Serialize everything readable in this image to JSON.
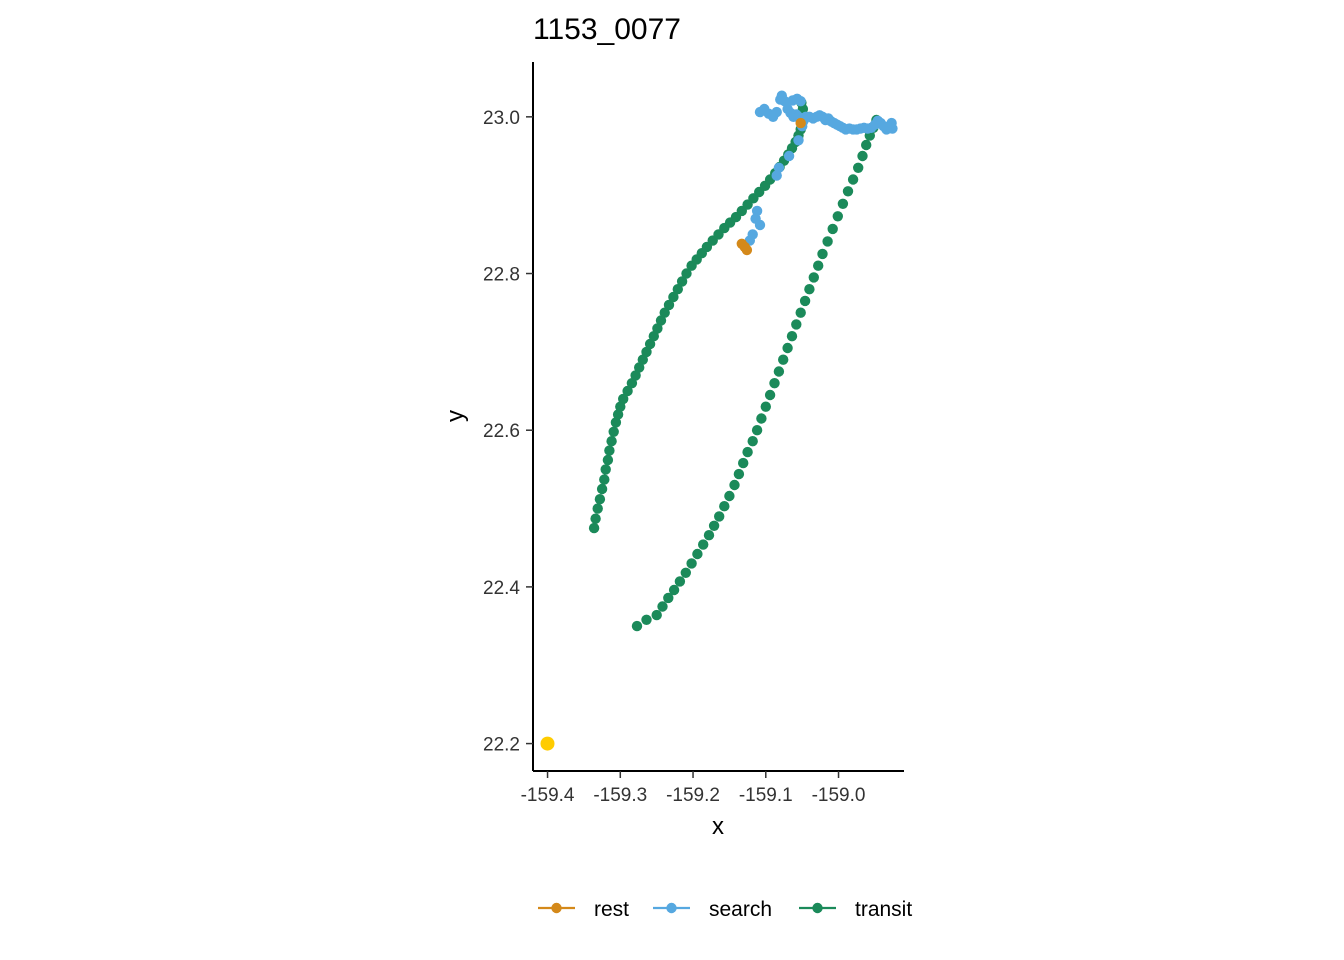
{
  "chart_data": {
    "type": "scatter",
    "title": "1153_0077",
    "xlabel": "x",
    "ylabel": "y",
    "xlim": [
      -159.42,
      -158.91
    ],
    "ylim": [
      22.165,
      23.07
    ],
    "x_ticks": [
      -159.4,
      -159.3,
      -159.2,
      -159.1,
      -159.0
    ],
    "x_tick_labels": [
      "-159.4",
      "-159.3",
      "-159.2",
      "-159.1",
      "-159.0"
    ],
    "y_ticks": [
      22.2,
      22.4,
      22.6,
      22.8,
      23.0
    ],
    "y_tick_labels": [
      "22.2",
      "22.4",
      "22.6",
      "22.8",
      "23.0"
    ],
    "grid": false,
    "legend_position": "bottom",
    "start_point": {
      "x": -159.4,
      "y": 22.2,
      "color": "#FFCC00"
    },
    "series": [
      {
        "name": "transit",
        "color": "#1B8A5A",
        "points": [
          [
            -159.336,
            22.475
          ],
          [
            -159.334,
            22.487
          ],
          [
            -159.331,
            22.5
          ],
          [
            -159.328,
            22.512
          ],
          [
            -159.325,
            22.525
          ],
          [
            -159.322,
            22.537
          ],
          [
            -159.32,
            22.55
          ],
          [
            -159.317,
            22.562
          ],
          [
            -159.315,
            22.574
          ],
          [
            -159.312,
            22.586
          ],
          [
            -159.309,
            22.598
          ],
          [
            -159.306,
            22.61
          ],
          [
            -159.303,
            22.62
          ],
          [
            -159.3,
            22.63
          ],
          [
            -159.296,
            22.64
          ],
          [
            -159.29,
            22.65
          ],
          [
            -159.284,
            22.66
          ],
          [
            -159.279,
            22.67
          ],
          [
            -159.274,
            22.68
          ],
          [
            -159.269,
            22.69
          ],
          [
            -159.264,
            22.7
          ],
          [
            -159.259,
            22.71
          ],
          [
            -159.254,
            22.72
          ],
          [
            -159.249,
            22.73
          ],
          [
            -159.244,
            22.74
          ],
          [
            -159.239,
            22.75
          ],
          [
            -159.233,
            22.76
          ],
          [
            -159.227,
            22.77
          ],
          [
            -159.221,
            22.78
          ],
          [
            -159.215,
            22.79
          ],
          [
            -159.209,
            22.8
          ],
          [
            -159.202,
            22.81
          ],
          [
            -159.195,
            22.818
          ],
          [
            -159.188,
            22.826
          ],
          [
            -159.181,
            22.834
          ],
          [
            -159.173,
            22.842
          ],
          [
            -159.165,
            22.85
          ],
          [
            -159.157,
            22.858
          ],
          [
            -159.149,
            22.865
          ],
          [
            -159.141,
            22.872
          ],
          [
            -159.133,
            22.88
          ],
          [
            -159.125,
            22.888
          ],
          [
            -159.117,
            22.896
          ],
          [
            -159.109,
            22.904
          ],
          [
            -159.101,
            22.912
          ],
          [
            -159.094,
            22.92
          ],
          [
            -159.087,
            22.928
          ],
          [
            -159.081,
            22.936
          ],
          [
            -159.075,
            22.944
          ],
          [
            -159.069,
            22.952
          ],
          [
            -159.064,
            22.96
          ],
          [
            -159.059,
            22.968
          ],
          [
            -159.055,
            22.976
          ],
          [
            -159.052,
            22.984
          ],
          [
            -159.05,
            22.992
          ],
          [
            -159.049,
            23.0
          ],
          [
            -159.049,
            23.01
          ],
          [
            -159.051,
            23.018
          ],
          [
            -158.948,
            22.996
          ],
          [
            -158.952,
            22.986
          ],
          [
            -158.957,
            22.976
          ],
          [
            -158.962,
            22.964
          ],
          [
            -158.967,
            22.95
          ],
          [
            -158.973,
            22.935
          ],
          [
            -158.98,
            22.92
          ],
          [
            -158.987,
            22.905
          ],
          [
            -158.994,
            22.889
          ],
          [
            -159.001,
            22.873
          ],
          [
            -159.008,
            22.857
          ],
          [
            -159.015,
            22.841
          ],
          [
            -159.022,
            22.825
          ],
          [
            -159.028,
            22.81
          ],
          [
            -159.034,
            22.795
          ],
          [
            -159.04,
            22.78
          ],
          [
            -159.046,
            22.765
          ],
          [
            -159.052,
            22.75
          ],
          [
            -159.058,
            22.735
          ],
          [
            -159.064,
            22.72
          ],
          [
            -159.07,
            22.705
          ],
          [
            -159.076,
            22.69
          ],
          [
            -159.082,
            22.675
          ],
          [
            -159.088,
            22.66
          ],
          [
            -159.094,
            22.645
          ],
          [
            -159.1,
            22.63
          ],
          [
            -159.106,
            22.615
          ],
          [
            -159.112,
            22.6
          ],
          [
            -159.118,
            22.586
          ],
          [
            -159.125,
            22.572
          ],
          [
            -159.131,
            22.558
          ],
          [
            -159.137,
            22.544
          ],
          [
            -159.143,
            22.53
          ],
          [
            -159.15,
            22.516
          ],
          [
            -159.157,
            22.503
          ],
          [
            -159.164,
            22.49
          ],
          [
            -159.171,
            22.478
          ],
          [
            -159.178,
            22.466
          ],
          [
            -159.186,
            22.454
          ],
          [
            -159.194,
            22.442
          ],
          [
            -159.202,
            22.43
          ],
          [
            -159.21,
            22.418
          ],
          [
            -159.218,
            22.407
          ],
          [
            -159.226,
            22.396
          ],
          [
            -159.234,
            22.386
          ],
          [
            -159.242,
            22.375
          ],
          [
            -159.25,
            22.364
          ],
          [
            -159.264,
            22.358
          ],
          [
            -159.277,
            22.35
          ]
        ]
      },
      {
        "name": "search",
        "color": "#56A8E0",
        "points": [
          [
            -159.108,
            23.006
          ],
          [
            -159.102,
            23.01
          ],
          [
            -159.096,
            23.004
          ],
          [
            -159.09,
            23.0
          ],
          [
            -159.085,
            23.006
          ],
          [
            -159.08,
            23.022
          ],
          [
            -159.078,
            23.027
          ],
          [
            -159.074,
            23.02
          ],
          [
            -159.07,
            23.01
          ],
          [
            -159.066,
            23.005
          ],
          [
            -159.062,
            23.0
          ],
          [
            -159.058,
            23.003
          ],
          [
            -159.055,
            23.0
          ],
          [
            -159.052,
            22.994
          ],
          [
            -159.05,
            22.988
          ],
          [
            -159.048,
            22.995
          ],
          [
            -159.045,
            23.0
          ],
          [
            -159.04,
            23.0
          ],
          [
            -159.035,
            22.998
          ],
          [
            -159.03,
            23.0
          ],
          [
            -159.026,
            23.002
          ],
          [
            -159.022,
            23.0
          ],
          [
            -159.018,
            22.996
          ],
          [
            -159.014,
            22.998
          ],
          [
            -159.01,
            22.994
          ],
          [
            -159.006,
            22.992
          ],
          [
            -159.002,
            22.99
          ],
          [
            -158.998,
            22.988
          ],
          [
            -158.994,
            22.986
          ],
          [
            -158.99,
            22.984
          ],
          [
            -158.985,
            22.985
          ],
          [
            -158.98,
            22.984
          ],
          [
            -158.975,
            22.984
          ],
          [
            -158.97,
            22.985
          ],
          [
            -158.965,
            22.986
          ],
          [
            -158.96,
            22.985
          ],
          [
            -158.955,
            22.986
          ],
          [
            -158.95,
            22.99
          ],
          [
            -158.946,
            22.995
          ],
          [
            -158.942,
            22.992
          ],
          [
            -158.938,
            22.988
          ],
          [
            -158.934,
            22.984
          ],
          [
            -158.93,
            22.988
          ],
          [
            -158.927,
            22.992
          ],
          [
            -158.926,
            22.985
          ],
          [
            -159.063,
            23.021
          ],
          [
            -159.057,
            23.023
          ],
          [
            -159.052,
            23.02
          ],
          [
            -159.055,
            22.97
          ],
          [
            -159.068,
            22.95
          ],
          [
            -159.082,
            22.935
          ],
          [
            -159.085,
            22.925
          ],
          [
            -159.112,
            22.88
          ],
          [
            -159.114,
            22.87
          ],
          [
            -159.108,
            22.862
          ],
          [
            -159.118,
            22.85
          ],
          [
            -159.122,
            22.842
          ]
        ]
      },
      {
        "name": "rest",
        "color": "#D4891A",
        "points": [
          [
            -159.133,
            22.838
          ],
          [
            -159.129,
            22.834
          ],
          [
            -159.126,
            22.83
          ],
          [
            -159.052,
            22.992
          ]
        ]
      }
    ]
  }
}
